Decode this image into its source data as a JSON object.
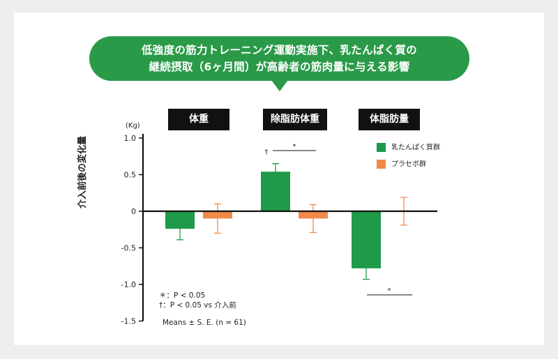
{
  "title": {
    "line1": "低強度の筋力トレーニング運動実施下、乳たんぱく質の",
    "line2": "継続摂取（6ヶ月間）が高齢者の筋肉量に与える影響"
  },
  "colors": {
    "green": "#1e9a48",
    "orange": "#f2894a",
    "bubble": "#2a9a48"
  },
  "chart_data": {
    "type": "bar",
    "categories": [
      "体重",
      "除脂肪体重",
      "体脂肪量"
    ],
    "series": [
      {
        "name": "乳たんぱく質群",
        "values": [
          -0.24,
          0.54,
          -0.78
        ],
        "errors": [
          0.15,
          0.11,
          0.15
        ]
      },
      {
        "name": "プラセボ群",
        "values": [
          -0.1,
          -0.1,
          0.0
        ],
        "errors": [
          0.2,
          0.19,
          0.19
        ]
      }
    ],
    "ylabel": "介入前後の変化量",
    "unit": "(Kg)",
    "ylim": [
      -1.5,
      1.0
    ],
    "yticks": [
      "1.0",
      "0.5",
      "0",
      "-0.5",
      "-1.0",
      "-1.5"
    ],
    "annotations": {
      "dagger": "†",
      "star": "*"
    },
    "notes": {
      "line1": "＊：P < 0.05",
      "line2": "†：P < 0.05 vs 介入前",
      "line3": "Means ± S. E. (n = 61)"
    }
  }
}
